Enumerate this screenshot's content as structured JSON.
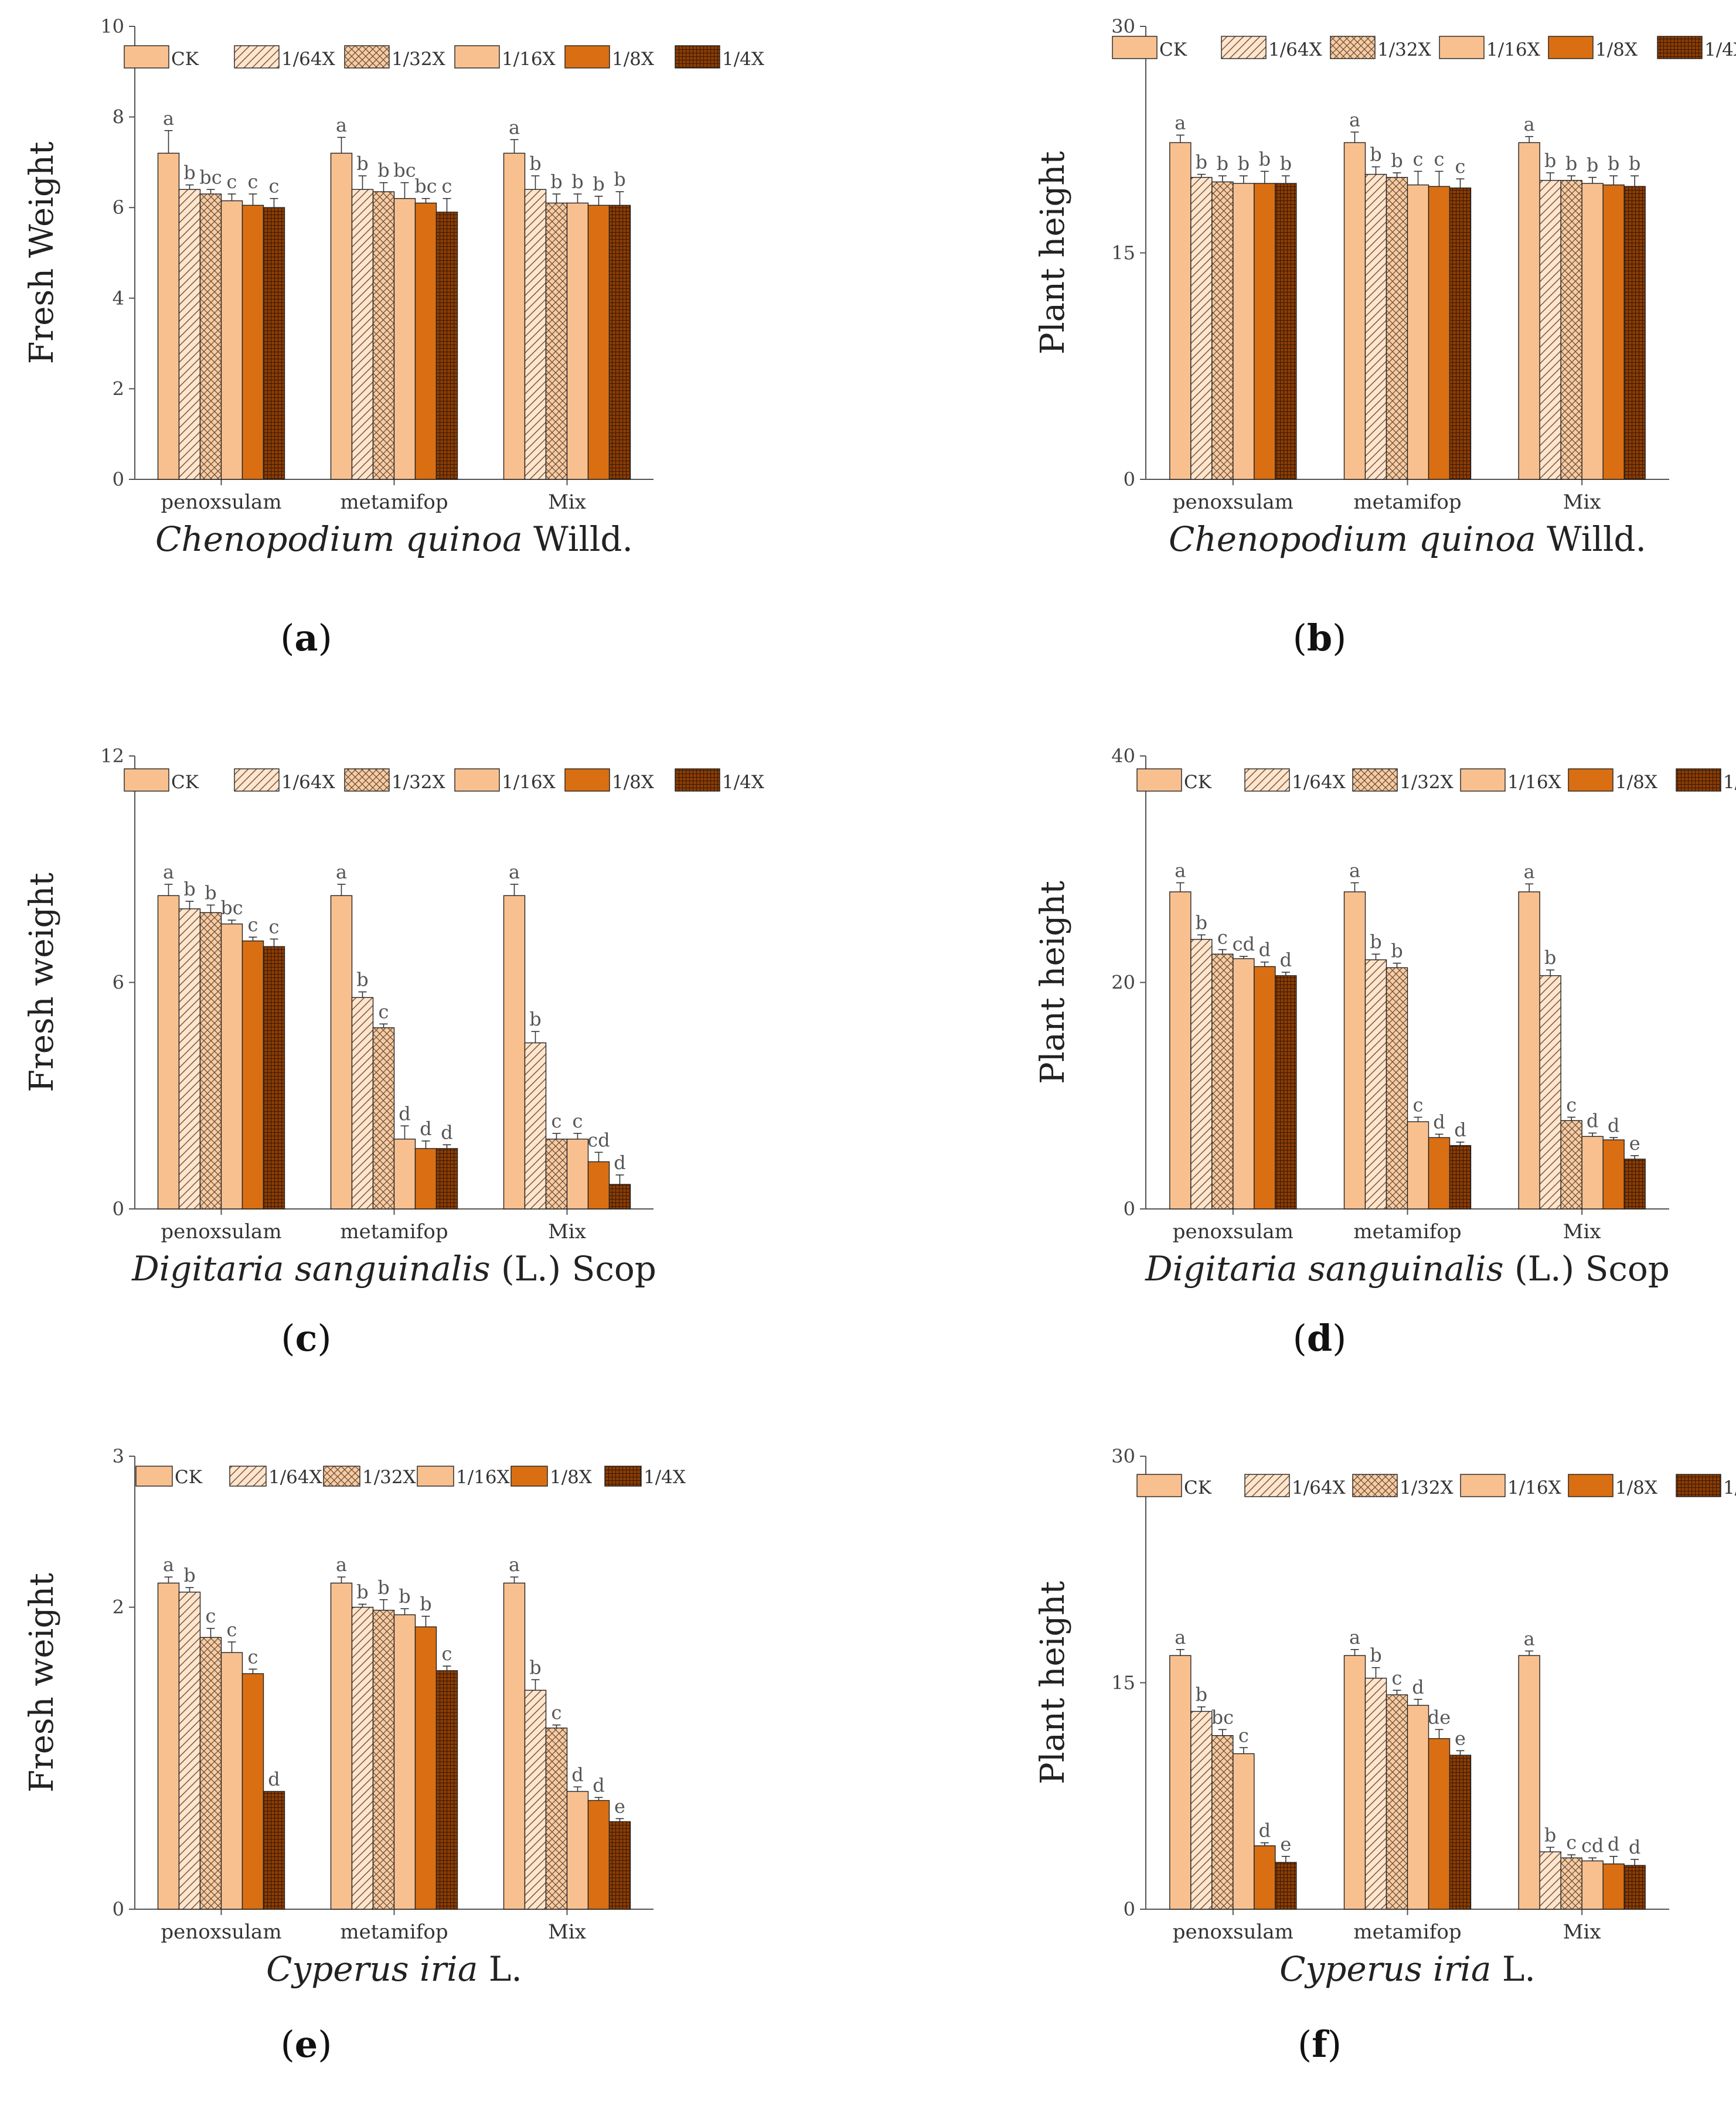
{
  "legend": [
    "CK",
    "1/64X",
    "1/32X",
    "1/16X",
    "1/8X",
    "1/4X"
  ],
  "categories": [
    "penoxsulam",
    "metamifop",
    "Mix"
  ],
  "colors": {
    "light": "#f9c08f",
    "orange": "#d96f12",
    "dark": "#8b3d05",
    "hatch": "#8a5a3a",
    "axis": "#555555"
  },
  "chart_data": [
    {
      "type": "bar",
      "panel": "a",
      "panel_label": "a",
      "ylabel": "Fresh Weight",
      "xlabel_italic": "Chenopodium quinoa",
      "xlabel_rest": " Willd.",
      "ylim": [
        0,
        10
      ],
      "yticks": [
        0,
        2,
        4,
        6,
        8,
        10
      ],
      "categories": [
        "penoxsulam",
        "metamifop",
        "Mix"
      ],
      "series": [
        {
          "name": "CK",
          "values": [
            7.2,
            7.2,
            7.2
          ],
          "errors": [
            0.5,
            0.35,
            0.3
          ],
          "letters": [
            "a",
            "a",
            "a"
          ]
        },
        {
          "name": "1/64X",
          "values": [
            6.4,
            6.4,
            6.4
          ],
          "errors": [
            0.1,
            0.3,
            0.3
          ],
          "letters": [
            "b",
            "b",
            "b"
          ]
        },
        {
          "name": "1/32X",
          "values": [
            6.3,
            6.35,
            6.1
          ],
          "errors": [
            0.1,
            0.2,
            0.2
          ],
          "letters": [
            "bc",
            "b",
            "b"
          ]
        },
        {
          "name": "1/16X",
          "values": [
            6.15,
            6.2,
            6.1
          ],
          "errors": [
            0.15,
            0.35,
            0.2
          ],
          "letters": [
            "c",
            "bc",
            "b"
          ]
        },
        {
          "name": "1/8X",
          "values": [
            6.05,
            6.1,
            6.05
          ],
          "errors": [
            0.25,
            0.1,
            0.2
          ],
          "letters": [
            "c",
            "bc",
            "b"
          ]
        },
        {
          "name": "1/4X",
          "values": [
            6.0,
            5.9,
            6.05
          ],
          "errors": [
            0.2,
            0.3,
            0.3
          ],
          "letters": [
            "c",
            "c",
            "b"
          ]
        }
      ]
    },
    {
      "type": "bar",
      "panel": "b",
      "panel_label": "b",
      "ylabel": "Plant height",
      "xlabel_italic": "Chenopodium quinoa",
      "xlabel_rest": " Willd.",
      "ylim": [
        0,
        30
      ],
      "yticks": [
        0,
        15,
        30
      ],
      "categories": [
        "penoxsulam",
        "metamifop",
        "Mix"
      ],
      "series": [
        {
          "name": "CK",
          "values": [
            22.3,
            22.3,
            22.3
          ],
          "errors": [
            0.5,
            0.7,
            0.4
          ],
          "letters": [
            "a",
            "a",
            "a"
          ]
        },
        {
          "name": "1/64X",
          "values": [
            20.0,
            20.2,
            19.8
          ],
          "errors": [
            0.2,
            0.5,
            0.5
          ],
          "letters": [
            "b",
            "b",
            "b"
          ]
        },
        {
          "name": "1/32X",
          "values": [
            19.7,
            20.0,
            19.8
          ],
          "errors": [
            0.4,
            0.3,
            0.3
          ],
          "letters": [
            "b",
            "b",
            "b"
          ]
        },
        {
          "name": "1/16X",
          "values": [
            19.6,
            19.5,
            19.6
          ],
          "errors": [
            0.5,
            0.9,
            0.4
          ],
          "letters": [
            "b",
            "c",
            "b"
          ]
        },
        {
          "name": "1/8X",
          "values": [
            19.6,
            19.4,
            19.5
          ],
          "errors": [
            0.8,
            1.0,
            0.6
          ],
          "letters": [
            "b",
            "c",
            "b"
          ]
        },
        {
          "name": "1/4X",
          "values": [
            19.6,
            19.3,
            19.4
          ],
          "errors": [
            0.5,
            0.6,
            0.7
          ],
          "letters": [
            "b",
            "c",
            "b"
          ]
        }
      ]
    },
    {
      "type": "bar",
      "panel": "c",
      "panel_label": "c",
      "ylabel": "Fresh weight",
      "xlabel_italic": "Digitaria sanguinalis",
      "xlabel_rest": " (L.) Scop",
      "ylim": [
        0,
        12
      ],
      "yticks": [
        0,
        6,
        12
      ],
      "categories": [
        "penoxsulam",
        "metamifop",
        "Mix"
      ],
      "series": [
        {
          "name": "CK",
          "values": [
            8.3,
            8.3,
            8.3
          ],
          "errors": [
            0.3,
            0.3,
            0.3
          ],
          "letters": [
            "a",
            "a",
            "a"
          ]
        },
        {
          "name": "1/64X",
          "values": [
            7.95,
            5.6,
            4.4
          ],
          "errors": [
            0.2,
            0.15,
            0.3
          ],
          "letters": [
            "b",
            "b",
            "b"
          ]
        },
        {
          "name": "1/32X",
          "values": [
            7.85,
            4.8,
            1.85
          ],
          "errors": [
            0.2,
            0.1,
            0.15
          ],
          "letters": [
            "b",
            "c",
            "c"
          ]
        },
        {
          "name": "1/16X",
          "values": [
            7.55,
            1.85,
            1.85
          ],
          "errors": [
            0.1,
            0.35,
            0.15
          ],
          "letters": [
            "bc",
            "d",
            "c"
          ]
        },
        {
          "name": "1/8X",
          "values": [
            7.1,
            1.6,
            1.25
          ],
          "errors": [
            0.1,
            0.2,
            0.25
          ],
          "letters": [
            "c",
            "d",
            "cd"
          ]
        },
        {
          "name": "1/4X",
          "values": [
            6.95,
            1.6,
            0.65
          ],
          "errors": [
            0.2,
            0.1,
            0.25
          ],
          "letters": [
            "c",
            "d",
            "d"
          ]
        }
      ]
    },
    {
      "type": "bar",
      "panel": "d",
      "panel_label": "d",
      "ylabel": "Plant height",
      "xlabel_italic": "Digitaria sanguinalis",
      "xlabel_rest": " (L.) Scop",
      "ylim": [
        0,
        40
      ],
      "yticks": [
        0,
        20,
        40
      ],
      "categories": [
        "penoxsulam",
        "metamifop",
        "Mix"
      ],
      "series": [
        {
          "name": "CK",
          "values": [
            28.0,
            28.0,
            28.0
          ],
          "errors": [
            0.8,
            0.8,
            0.7
          ],
          "letters": [
            "a",
            "a",
            "a"
          ]
        },
        {
          "name": "1/64X",
          "values": [
            23.8,
            22.0,
            20.6
          ],
          "errors": [
            0.4,
            0.5,
            0.5
          ],
          "letters": [
            "b",
            "b",
            "b"
          ]
        },
        {
          "name": "1/32X",
          "values": [
            22.5,
            21.3,
            7.8
          ],
          "errors": [
            0.4,
            0.4,
            0.3
          ],
          "letters": [
            "c",
            "b",
            "c"
          ]
        },
        {
          "name": "1/16X",
          "values": [
            22.1,
            7.7,
            6.4
          ],
          "errors": [
            0.2,
            0.4,
            0.3
          ],
          "letters": [
            "cd",
            "c",
            "d"
          ]
        },
        {
          "name": "1/8X",
          "values": [
            21.4,
            6.3,
            6.1
          ],
          "errors": [
            0.4,
            0.3,
            0.2
          ],
          "letters": [
            "d",
            "d",
            "d"
          ]
        },
        {
          "name": "1/4X",
          "values": [
            20.6,
            5.6,
            4.4
          ],
          "errors": [
            0.3,
            0.3,
            0.3
          ],
          "letters": [
            "d",
            "d",
            "e"
          ]
        }
      ]
    },
    {
      "type": "bar",
      "panel": "e",
      "panel_label": "e",
      "ylabel": "Fresh weight",
      "xlabel_italic": "Cyperus iria",
      "xlabel_rest": " L.",
      "ylim": [
        0,
        3
      ],
      "yticks": [
        0,
        2,
        3
      ],
      "categories": [
        "penoxsulam",
        "metamifop",
        "Mix"
      ],
      "series": [
        {
          "name": "CK",
          "values": [
            2.16,
            2.16,
            2.16
          ],
          "errors": [
            0.04,
            0.04,
            0.04
          ],
          "letters": [
            "a",
            "a",
            "a"
          ]
        },
        {
          "name": "1/64X",
          "values": [
            2.1,
            2.0,
            1.45
          ],
          "errors": [
            0.03,
            0.02,
            0.07
          ],
          "letters": [
            "b",
            "b",
            "b"
          ]
        },
        {
          "name": "1/32X",
          "values": [
            1.8,
            1.98,
            1.2
          ],
          "errors": [
            0.06,
            0.07,
            0.02
          ],
          "letters": [
            "c",
            "b",
            "c"
          ]
        },
        {
          "name": "1/16X",
          "values": [
            1.7,
            1.95,
            0.78
          ],
          "errors": [
            0.07,
            0.04,
            0.03
          ],
          "letters": [
            "c",
            "b",
            "d"
          ]
        },
        {
          "name": "1/8X",
          "values": [
            1.56,
            1.87,
            0.72
          ],
          "errors": [
            0.03,
            0.07,
            0.02
          ],
          "letters": [
            "c",
            "b",
            "d"
          ]
        },
        {
          "name": "1/4X",
          "values": [
            0.78,
            1.58,
            0.58
          ],
          "errors": [
            0.0,
            0.03,
            0.02
          ],
          "letters": [
            "d",
            "c",
            "e"
          ]
        }
      ]
    },
    {
      "type": "bar",
      "panel": "f",
      "panel_label": "f",
      "ylabel": "Plant height",
      "xlabel_italic": "Cyperus iria",
      "xlabel_rest": " L.",
      "ylim": [
        0,
        30
      ],
      "yticks": [
        0,
        15,
        30
      ],
      "categories": [
        "penoxsulam",
        "metamifop",
        "Mix"
      ],
      "series": [
        {
          "name": "CK",
          "values": [
            16.8,
            16.8,
            16.8
          ],
          "errors": [
            0.4,
            0.4,
            0.3
          ],
          "letters": [
            "a",
            "a",
            "a"
          ]
        },
        {
          "name": "1/64X",
          "values": [
            13.1,
            15.3,
            3.8
          ],
          "errors": [
            0.3,
            0.7,
            0.3
          ],
          "letters": [
            "b",
            "b",
            "b"
          ]
        },
        {
          "name": "1/32X",
          "values": [
            11.5,
            14.2,
            3.4
          ],
          "errors": [
            0.4,
            0.3,
            0.2
          ],
          "letters": [
            "bc",
            "c",
            "c"
          ]
        },
        {
          "name": "1/16X",
          "values": [
            10.3,
            13.5,
            3.2
          ],
          "errors": [
            0.4,
            0.4,
            0.2
          ],
          "letters": [
            "c",
            "d",
            "cd"
          ]
        },
        {
          "name": "1/8X",
          "values": [
            4.2,
            11.3,
            3.0
          ],
          "errors": [
            0.2,
            0.6,
            0.5
          ],
          "letters": [
            "d",
            "de",
            "d"
          ]
        },
        {
          "name": "1/4X",
          "values": [
            3.1,
            10.2,
            2.9
          ],
          "errors": [
            0.4,
            0.3,
            0.4
          ],
          "letters": [
            "e",
            "e",
            "d"
          ]
        }
      ]
    }
  ]
}
